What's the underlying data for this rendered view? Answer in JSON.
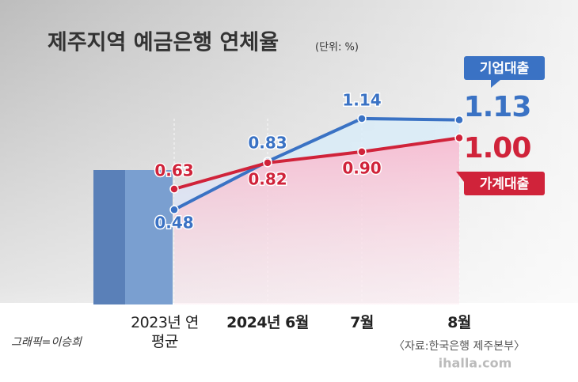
{
  "chart_data": {
    "type": "line",
    "title": "제주지역 예금은행 연체율",
    "unit": "(단위: %)",
    "categories": [
      "2023년 연평균",
      "2024년 6월",
      "7월",
      "8월"
    ],
    "series": [
      {
        "name": "기업대출",
        "color": "#3a72c4",
        "values": [
          0.48,
          0.83,
          1.14,
          1.13
        ]
      },
      {
        "name": "가계대출",
        "color": "#d0233a",
        "values": [
          0.63,
          0.82,
          0.9,
          1.0
        ],
        "value_labels": [
          "0.63",
          "0.82",
          "0.90",
          "1.00"
        ]
      }
    ],
    "ylim": [
      0,
      1.3
    ],
    "credit": "그래픽=이승희",
    "source": "〈자료:한국은행 제주본부〉",
    "watermark": "ihalla.com"
  }
}
